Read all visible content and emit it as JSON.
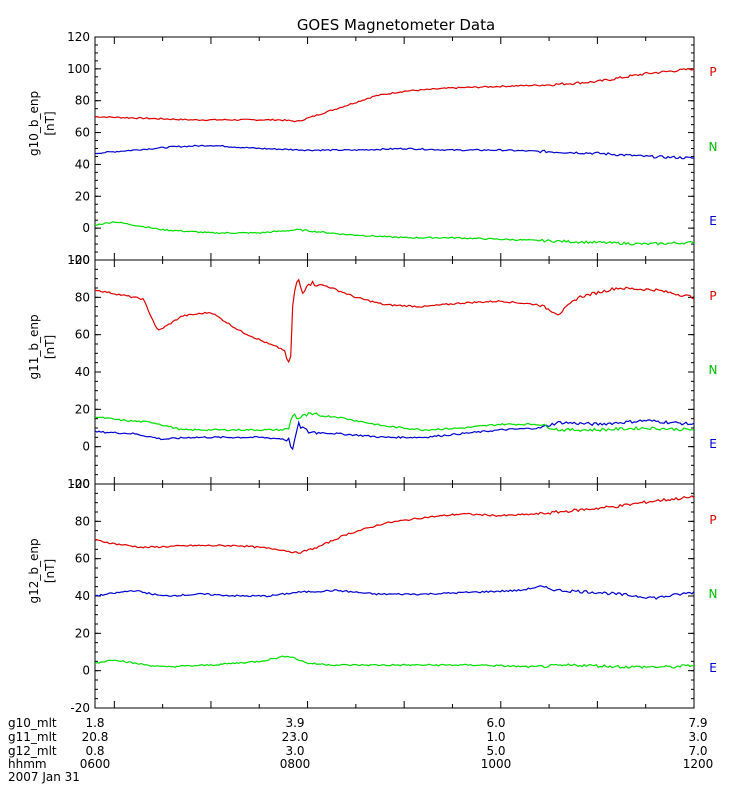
{
  "chart_data": {
    "type": "line",
    "title": "GOES Magnetometer Data",
    "x_ticks": [
      "0600",
      "0800",
      "1000",
      "1200"
    ],
    "x_range_hours": [
      5.8,
      12.0
    ],
    "panels": [
      {
        "ylabel": "g10_b_enp",
        "unit": "[nT]",
        "ylim": [
          -20,
          120
        ],
        "yticks": [
          -20,
          0,
          20,
          40,
          60,
          80,
          100,
          120
        ],
        "labels": [
          "P",
          "N",
          "E"
        ],
        "series": [
          {
            "name": "P",
            "color": "#dd0000",
            "t": [
              5.8,
              6.3,
              6.8,
              7.3,
              7.7,
              7.9,
              8.1,
              8.4,
              8.7,
              9.0,
              9.5,
              10.0,
              10.5,
              11.0,
              11.5,
              12.0
            ],
            "v": [
              70,
              69,
              68,
              68,
              68,
              67,
              71,
              77,
              83,
              86,
              88,
              89,
              90,
              92,
              97,
              100
            ]
          },
          {
            "name": "N",
            "color": "#0000cc",
            "t": [
              5.8,
              6.2,
              6.6,
              7.0,
              7.5,
              8.0,
              8.5,
              9.0,
              9.5,
              10.0,
              10.5,
              11.0,
              11.5,
              12.0
            ],
            "v": [
              47,
              49,
              51,
              52,
              50,
              49,
              49,
              50,
              49,
              49,
              48,
              47,
              45,
              44
            ]
          },
          {
            "name": "E",
            "color": "#00dd00",
            "t": [
              5.8,
              6.0,
              6.5,
              7.0,
              7.5,
              7.9,
              8.4,
              9.0,
              9.5,
              10.0,
              10.5,
              11.0,
              11.5,
              12.0
            ],
            "v": [
              2,
              4,
              -1,
              -3,
              -3,
              -1,
              -4,
              -6,
              -6,
              -7,
              -8,
              -9,
              -10,
              -9
            ]
          }
        ]
      },
      {
        "ylabel": "g11_b_enp",
        "unit": "[nT]",
        "ylim": [
          -20,
          100
        ],
        "yticks": [
          -20,
          0,
          20,
          40,
          60,
          80,
          100
        ],
        "labels": [
          "P",
          "N",
          "E"
        ],
        "series": [
          {
            "name": "P",
            "color": "#dd0000",
            "t": [
              5.8,
              6.0,
              6.3,
              6.45,
              6.55,
              6.7,
              7.0,
              7.3,
              7.6,
              7.75,
              7.82,
              7.85,
              7.9,
              7.95,
              8.0,
              8.2,
              8.5,
              8.8,
              9.2,
              9.6,
              10.0,
              10.4,
              10.6,
              10.8,
              11.2,
              11.6,
              12.0
            ],
            "v": [
              84,
              82,
              79,
              62,
              65,
              70,
              72,
              62,
              55,
              52,
              42,
              80,
              90,
              82,
              88,
              86,
              80,
              76,
              75,
              77,
              78,
              76,
              71,
              80,
              85,
              84,
              80
            ]
          },
          {
            "name": "N",
            "color": "#0000cc",
            "t": [
              5.8,
              6.2,
              6.5,
              6.8,
              7.1,
              7.5,
              7.8,
              7.85,
              7.9,
              8.0,
              8.3,
              8.8,
              9.2,
              9.6,
              10.0,
              10.4,
              10.6,
              11.0,
              11.5,
              12.0
            ],
            "v": [
              8,
              7,
              4,
              5,
              5,
              5,
              4,
              -2,
              12,
              8,
              7,
              5,
              5,
              7,
              9,
              10,
              13,
              12,
              14,
              12
            ]
          },
          {
            "name": "E",
            "color": "#00dd00",
            "t": [
              5.8,
              6.1,
              6.4,
              6.7,
              7.0,
              7.5,
              7.8,
              7.85,
              7.9,
              8.0,
              8.3,
              8.8,
              9.2,
              9.6,
              10.0,
              10.4,
              10.6,
              11.0,
              11.5,
              12.0
            ],
            "v": [
              16,
              14,
              13,
              9,
              9,
              9,
              9,
              18,
              15,
              17,
              16,
              11,
              9,
              10,
              12,
              12,
              9,
              9,
              10,
              9
            ]
          }
        ]
      },
      {
        "ylabel": "g12_b_enp",
        "unit": "[nT]",
        "ylim": [
          -20,
          100
        ],
        "yticks": [
          -20,
          0,
          20,
          40,
          60,
          80,
          100
        ],
        "labels": [
          "P",
          "N",
          "E"
        ],
        "series": [
          {
            "name": "P",
            "color": "#dd0000",
            "t": [
              5.8,
              6.0,
              6.3,
              6.8,
              7.3,
              7.7,
              7.9,
              8.1,
              8.4,
              8.8,
              9.2,
              9.6,
              10.0,
              10.4,
              10.8,
              11.2,
              11.6,
              12.0
            ],
            "v": [
              70,
              68,
              66,
              67,
              67,
              65,
              63,
              66,
              73,
              79,
              82,
              84,
              83,
              84,
              86,
              88,
              91,
              93
            ]
          },
          {
            "name": "N",
            "color": "#0000cc",
            "t": [
              5.8,
              6.2,
              6.5,
              6.9,
              7.3,
              7.6,
              7.9,
              8.3,
              8.7,
              9.2,
              9.7,
              10.2,
              10.4,
              10.6,
              11.0,
              11.4,
              11.6,
              12.0
            ],
            "v": [
              40,
              43,
              40,
              41,
              40,
              40,
              42,
              43,
              41,
              41,
              42,
              43,
              45,
              43,
              42,
              40,
              39,
              42
            ]
          },
          {
            "name": "E",
            "color": "#00dd00",
            "t": [
              5.8,
              6.0,
              6.2,
              6.5,
              7.0,
              7.5,
              7.8,
              8.0,
              8.3,
              8.8,
              9.3,
              9.8,
              10.3,
              10.8,
              11.3,
              11.8,
              12.0
            ],
            "v": [
              4,
              6,
              4,
              2,
              3,
              5,
              8,
              4,
              3,
              3,
              3,
              3,
              2,
              3,
              2,
              2,
              3
            ]
          }
        ]
      }
    ],
    "footer": {
      "rows": [
        {
          "label": "g10_mlt",
          "values": [
            "1.8",
            "3.9",
            "6.0",
            "7.9"
          ]
        },
        {
          "label": "g11_mlt",
          "values": [
            "20.8",
            "23.0",
            "1.0",
            "3.0"
          ]
        },
        {
          "label": "g12_mlt",
          "values": [
            "0.8",
            "3.0",
            "5.0",
            "7.0"
          ]
        },
        {
          "label": "hhmm",
          "values": [
            "0600",
            "0800",
            "1000",
            "1200"
          ]
        }
      ],
      "date": "2007 Jan 31"
    }
  }
}
